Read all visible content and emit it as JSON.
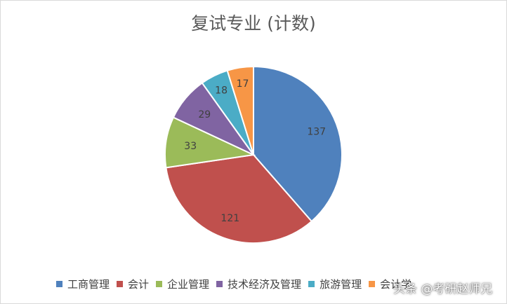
{
  "chart_data": {
    "type": "pie",
    "title": "复试专业 (计数)",
    "categories": [
      "工商管理",
      "会计",
      "企业管理",
      "技术经济及管理",
      "旅游管理",
      "会计学"
    ],
    "values": [
      137,
      121,
      33,
      29,
      18,
      17
    ],
    "colors": [
      "#4f81bd",
      "#c0504d",
      "#9bbb59",
      "#8064a2",
      "#4bacc6",
      "#f79646"
    ],
    "data_labels": [
      "137",
      "121",
      "33",
      "29",
      "18",
      "17"
    ],
    "legend_position": "bottom"
  },
  "watermark": "头条 @考研赵师兄"
}
